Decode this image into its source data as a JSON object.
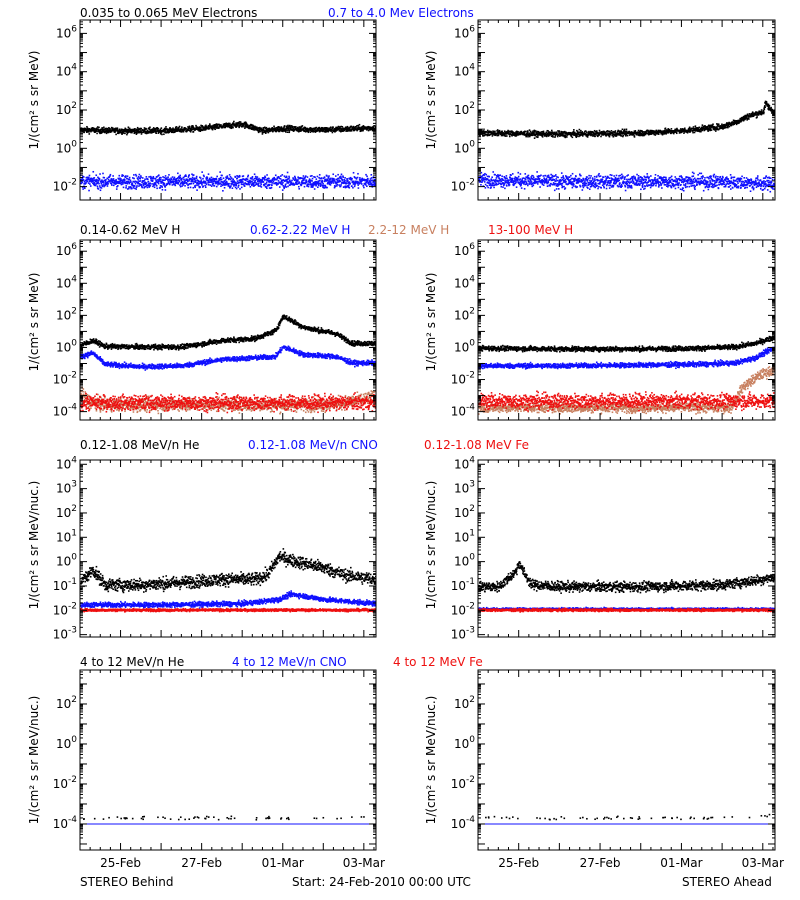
{
  "row_legends": [
    [
      {
        "text": "0.035 to 0.065 MeV Electrons",
        "color": "#000000"
      },
      {
        "text": "0.7 to 4.0 Mev Electrons",
        "color": "#1010ff"
      }
    ],
    [
      {
        "text": "0.14-0.62 MeV H",
        "color": "#000000"
      },
      {
        "text": "0.62-2.22 MeV H",
        "color": "#1010ff"
      },
      {
        "text": "2.2-12 MeV H",
        "color": "#c88060"
      },
      {
        "text": "13-100 MeV H",
        "color": "#ee1010"
      }
    ],
    [
      {
        "text": "0.12-1.08 MeV/n He",
        "color": "#000000"
      },
      {
        "text": "0.12-1.08 MeV/n CNO",
        "color": "#1010ff"
      },
      {
        "text": "0.12-1.08 MeV Fe",
        "color": "#ee1010"
      }
    ],
    [
      {
        "text": "4 to 12 MeV/n He",
        "color": "#000000"
      },
      {
        "text": "4 to 12 MeV/n CNO",
        "color": "#1010ff"
      },
      {
        "text": "4 to 12 MeV Fe",
        "color": "#ee1010"
      }
    ]
  ],
  "ylabels": {
    "row1": "1/(cm² s sr MeV)",
    "row2": "1/(cm² s sr MeV)",
    "row3": "1/(cm² s sr MeV/nuc.)",
    "row4": "1/(cm² s sr MeV/nuc.)"
  },
  "footer": {
    "left": "STEREO Behind",
    "center": "Start: 24-Feb-2010 00:00 UTC",
    "right": "STEREO Ahead"
  },
  "chart_data": [
    {
      "type": "scatter",
      "panel": "row1-behind",
      "ylabel": "1/(cm² s sr MeV)",
      "yscale": "log",
      "ylim": [
        0.002,
        5000000
      ],
      "ytick_exponents": [
        -2,
        0,
        2,
        4,
        6
      ],
      "x_ticks": [
        "25-Feb",
        "27-Feb",
        "01-Mar",
        "03-Mar"
      ],
      "xlim_days": [
        0,
        7.3
      ],
      "series": [
        {
          "color": "#000000",
          "x": [
            0,
            1,
            2,
            3,
            4,
            4.5,
            5,
            6,
            7.3
          ],
          "y": [
            10,
            9,
            9,
            12,
            20,
            9,
            12,
            10,
            13
          ],
          "scatter": 0.15
        },
        {
          "color": "#1010ff",
          "x": [
            0,
            2,
            4,
            6,
            7.3
          ],
          "y": [
            0.02,
            0.02,
            0.02,
            0.02,
            0.02
          ],
          "scatter": 0.35
        }
      ]
    },
    {
      "type": "scatter",
      "panel": "row1-ahead",
      "ylabel": "1/(cm² s sr MeV)",
      "yscale": "log",
      "ylim": [
        0.002,
        5000000
      ],
      "ytick_exponents": [
        -2,
        0,
        2,
        4,
        6
      ],
      "x_ticks": [
        "25-Feb",
        "27-Feb",
        "01-Mar",
        "03-Mar"
      ],
      "xlim_days": [
        0,
        7.3
      ],
      "series": [
        {
          "color": "#000000",
          "x": [
            0,
            2,
            4,
            5,
            6,
            6.4,
            6.6,
            7.0,
            7.05,
            7.3
          ],
          "y": [
            7,
            6,
            7,
            9,
            15,
            30,
            50,
            90,
            250,
            60
          ],
          "scatter": 0.15
        },
        {
          "color": "#1010ff",
          "x": [
            0,
            2,
            4,
            6,
            7.3
          ],
          "y": [
            0.025,
            0.02,
            0.02,
            0.02,
            0.015
          ],
          "scatter": 0.35
        }
      ]
    },
    {
      "type": "scatter",
      "panel": "row2-behind",
      "ylabel": "1/(cm² s sr MeV)",
      "yscale": "log",
      "ylim": [
        3e-05,
        5000000
      ],
      "ytick_exponents": [
        -4,
        -2,
        0,
        2,
        4,
        6
      ],
      "x_ticks": [
        "25-Feb",
        "27-Feb",
        "01-Mar",
        "03-Mar"
      ],
      "xlim_days": [
        0,
        7.3
      ],
      "series": [
        {
          "color": "#000000",
          "x": [
            0,
            0.3,
            0.6,
            1.5,
            2.5,
            3.5,
            4.3,
            4.8,
            5.0,
            5.5,
            6.3,
            6.7,
            7.3
          ],
          "y": [
            1.5,
            3,
            1.3,
            1.2,
            1.2,
            3,
            4,
            12,
            100,
            20,
            8,
            2,
            2
          ],
          "scatter": 0.15
        },
        {
          "color": "#1010ff",
          "x": [
            0,
            0.3,
            0.6,
            1.5,
            2.5,
            3.5,
            4.3,
            4.8,
            5.0,
            5.5,
            6.3,
            6.7,
            7.3
          ],
          "y": [
            0.3,
            0.5,
            0.1,
            0.07,
            0.08,
            0.2,
            0.25,
            0.3,
            1.2,
            0.4,
            0.3,
            0.12,
            0.12
          ],
          "scatter": 0.15
        },
        {
          "color": "#c88060",
          "x": [
            0,
            0.2,
            0.5,
            2,
            4,
            6,
            6.8,
            7.3
          ],
          "y": [
            0.0015,
            0.0005,
            0.0003,
            0.0003,
            0.0003,
            0.0003,
            0.0005,
            0.001
          ],
          "scatter": 0.4
        },
        {
          "color": "#ee1010",
          "x": [
            0,
            2,
            4,
            6,
            7.3
          ],
          "y": [
            0.0004,
            0.0004,
            0.0004,
            0.0004,
            0.0004
          ],
          "scatter": 0.45
        }
      ]
    },
    {
      "type": "scatter",
      "panel": "row2-ahead",
      "ylabel": "1/(cm² s sr MeV)",
      "yscale": "log",
      "ylim": [
        3e-05,
        5000000
      ],
      "ytick_exponents": [
        -4,
        -2,
        0,
        2,
        4,
        6
      ],
      "x_ticks": [
        "25-Feb",
        "27-Feb",
        "01-Mar",
        "03-Mar"
      ],
      "xlim_days": [
        0,
        7.3
      ],
      "series": [
        {
          "color": "#000000",
          "x": [
            0,
            2,
            4,
            5.5,
            6.3,
            6.8,
            7.3
          ],
          "y": [
            1,
            0.9,
            0.9,
            1,
            1.2,
            2,
            5
          ],
          "scatter": 0.15
        },
        {
          "color": "#1010ff",
          "x": [
            0,
            2,
            4,
            5.5,
            6.3,
            6.8,
            7.3
          ],
          "y": [
            0.08,
            0.08,
            0.09,
            0.1,
            0.12,
            0.25,
            1.2
          ],
          "scatter": 0.15
        },
        {
          "color": "#c88060",
          "x": [
            0,
            3,
            6.2,
            6.5,
            6.9,
            7.3
          ],
          "y": [
            0.0002,
            0.0002,
            0.0002,
            0.004,
            0.02,
            0.05
          ],
          "scatter": 0.3
        },
        {
          "color": "#ee1010",
          "x": [
            0,
            2,
            4,
            6,
            7.3
          ],
          "y": [
            0.0005,
            0.0005,
            0.0005,
            0.0005,
            0.0005
          ],
          "scatter": 0.45
        }
      ]
    },
    {
      "type": "scatter",
      "panel": "row3-behind",
      "ylabel": "1/(cm² s sr MeV/nuc.)",
      "yscale": "log",
      "ylim": [
        0.0008,
        15000
      ],
      "ytick_exponents": [
        -3,
        -2,
        -1,
        0,
        1,
        2,
        3,
        4
      ],
      "x_ticks": [
        "25-Feb",
        "27-Feb",
        "01-Mar",
        "03-Mar"
      ],
      "xlim_days": [
        0,
        7.3
      ],
      "series": [
        {
          "color": "#000000",
          "x": [
            0,
            0.3,
            0.6,
            1.5,
            2.5,
            3.5,
            4.3,
            4.6,
            4.9,
            5.2,
            6.0,
            6.5,
            7.3
          ],
          "y": [
            0.15,
            0.5,
            0.12,
            0.12,
            0.15,
            0.2,
            0.2,
            0.3,
            1.8,
            1.2,
            0.6,
            0.3,
            0.2
          ],
          "scatter": 0.25
        },
        {
          "color": "#1010ff",
          "x": [
            0,
            2,
            4,
            4.9,
            5.2,
            6,
            7.3
          ],
          "y": [
            0.018,
            0.018,
            0.02,
            0.03,
            0.05,
            0.03,
            0.02
          ],
          "scatter": 0.1
        },
        {
          "color": "#ee1010",
          "x": [
            0,
            2,
            4,
            6,
            7.3
          ],
          "y": [
            0.011,
            0.011,
            0.011,
            0.011,
            0.011
          ],
          "scatter": 0.05
        }
      ]
    },
    {
      "type": "scatter",
      "panel": "row3-ahead",
      "ylabel": "1/(cm² s sr MeV/nuc.)",
      "yscale": "log",
      "ylim": [
        0.0008,
        15000
      ],
      "ytick_exponents": [
        -3,
        -2,
        -1,
        0,
        1,
        2,
        3,
        4
      ],
      "x_ticks": [
        "25-Feb",
        "27-Feb",
        "01-Mar",
        "03-Mar"
      ],
      "xlim_days": [
        0,
        7.3
      ],
      "series": [
        {
          "color": "#000000",
          "x": [
            0,
            0.5,
            0.9,
            1.0,
            1.1,
            1.3,
            2,
            4,
            6,
            6.8,
            7.3
          ],
          "y": [
            0.1,
            0.1,
            0.4,
            1.0,
            0.4,
            0.12,
            0.1,
            0.1,
            0.12,
            0.18,
            0.25
          ],
          "scatter": 0.2
        },
        {
          "color": "#1010ff",
          "x": [
            0,
            2,
            4,
            6,
            7.3
          ],
          "y": [
            0.012,
            0.012,
            0.012,
            0.012,
            0.012
          ],
          "scatter": 0.05
        },
        {
          "color": "#ee1010",
          "x": [
            0,
            2,
            4,
            6,
            7.3
          ],
          "y": [
            0.011,
            0.011,
            0.011,
            0.011,
            0.011
          ],
          "scatter": 0.05
        }
      ]
    },
    {
      "type": "scatter",
      "panel": "row4-behind",
      "ylabel": "1/(cm² s sr MeV/nuc.)",
      "yscale": "log",
      "ylim": [
        5e-06,
        5000
      ],
      "ytick_exponents": [
        -4,
        -2,
        0,
        2
      ],
      "x_ticks": [
        "25-Feb",
        "27-Feb",
        "01-Mar",
        "03-Mar"
      ],
      "xlim_days": [
        0,
        7.3
      ],
      "series": [
        {
          "color": "#000000",
          "x": [
            0,
            7.3
          ],
          "y": [
            0.00022,
            0.00022
          ],
          "scatter": 0.08,
          "sparse": true
        },
        {
          "color": "#1010ff",
          "x": [
            0,
            7.3
          ],
          "y": [
            0.0001,
            0.0001
          ],
          "scatter": 0.0
        }
      ]
    },
    {
      "type": "scatter",
      "panel": "row4-ahead",
      "ylabel": "1/(cm² s sr MeV/nuc.)",
      "yscale": "log",
      "ylim": [
        5e-06,
        5000
      ],
      "ytick_exponents": [
        -4,
        -2,
        0,
        2
      ],
      "x_ticks": [
        "25-Feb",
        "27-Feb",
        "01-Mar",
        "03-Mar"
      ],
      "xlim_days": [
        0,
        7.3
      ],
      "series": [
        {
          "color": "#000000",
          "x": [
            0,
            5,
            6.5,
            7.0,
            7.3
          ],
          "y": [
            0.00022,
            0.00022,
            0.00022,
            0.00025,
            0.0003
          ],
          "scatter": 0.08,
          "sparse": true
        },
        {
          "color": "#1010ff",
          "x": [
            0,
            7.3
          ],
          "y": [
            0.0001,
            0.0001
          ],
          "scatter": 0.0
        }
      ]
    }
  ]
}
